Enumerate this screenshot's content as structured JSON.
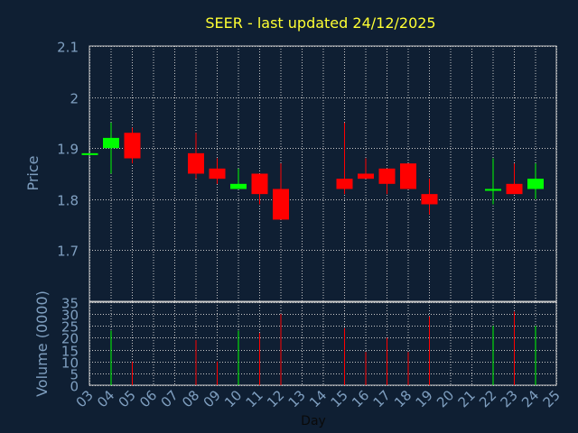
{
  "colors": {
    "background": "#0f1f33",
    "title": "#ffff33",
    "axis_text": "#7f9fc0",
    "grid": "#c8c8c8",
    "up": "#00ff00",
    "down": "#ff0000"
  },
  "chart_data": [
    {
      "type": "candlestick",
      "title": "SEER - last updated 24/12/2025",
      "ylabel": "Price",
      "ylim": [
        1.6,
        2.1
      ],
      "yticks": [
        "1.7",
        "1.8",
        "1.9",
        "2",
        "2.1"
      ],
      "ytick_values": [
        1.7,
        1.8,
        1.9,
        2.0,
        2.1
      ],
      "grid": true,
      "candles": [
        {
          "day": "03",
          "open": 1.89,
          "high": 1.89,
          "low": 1.89,
          "close": 1.89
        },
        {
          "day": "04",
          "open": 1.9,
          "high": 1.95,
          "low": 1.85,
          "close": 1.92
        },
        {
          "day": "05",
          "open": 1.93,
          "high": 1.94,
          "low": 1.87,
          "close": 1.88
        },
        {
          "day": "08",
          "open": 1.89,
          "high": 1.93,
          "low": 1.84,
          "close": 1.85
        },
        {
          "day": "09",
          "open": 1.86,
          "high": 1.88,
          "low": 1.83,
          "close": 1.84
        },
        {
          "day": "10",
          "open": 1.82,
          "high": 1.86,
          "low": 1.82,
          "close": 1.83
        },
        {
          "day": "11",
          "open": 1.85,
          "high": 1.85,
          "low": 1.79,
          "close": 1.81
        },
        {
          "day": "12",
          "open": 1.82,
          "high": 1.87,
          "low": 1.76,
          "close": 1.76
        },
        {
          "day": "15",
          "open": 1.84,
          "high": 1.95,
          "low": 1.81,
          "close": 1.82
        },
        {
          "day": "16",
          "open": 1.85,
          "high": 1.88,
          "low": 1.84,
          "close": 1.84
        },
        {
          "day": "17",
          "open": 1.86,
          "high": 1.86,
          "low": 1.81,
          "close": 1.83
        },
        {
          "day": "18",
          "open": 1.87,
          "high": 1.87,
          "low": 1.82,
          "close": 1.82
        },
        {
          "day": "19",
          "open": 1.81,
          "high": 1.84,
          "low": 1.77,
          "close": 1.79
        },
        {
          "day": "22",
          "open": 1.82,
          "high": 1.88,
          "low": 1.79,
          "close": 1.82
        },
        {
          "day": "23",
          "open": 1.83,
          "high": 1.87,
          "low": 1.81,
          "close": 1.81
        },
        {
          "day": "24",
          "open": 1.82,
          "high": 1.87,
          "low": 1.8,
          "close": 1.84
        }
      ]
    },
    {
      "type": "bar",
      "ylabel": "Volume (0000)",
      "xlabel": "Day",
      "ylim": [
        0,
        35
      ],
      "yticks": [
        "0",
        "5",
        "10",
        "15",
        "20",
        "25",
        "30",
        "35"
      ],
      "ytick_values": [
        0,
        5,
        10,
        15,
        20,
        25,
        30,
        35
      ],
      "categories": [
        "03",
        "04",
        "05",
        "06",
        "07",
        "08",
        "09",
        "10",
        "11",
        "12",
        "13",
        "14",
        "15",
        "16",
        "17",
        "18",
        "19",
        "20",
        "21",
        "22",
        "23",
        "24",
        "25"
      ],
      "volumes": [
        {
          "day": "04",
          "value": 23,
          "direction": "up"
        },
        {
          "day": "05",
          "value": 10,
          "direction": "down"
        },
        {
          "day": "08",
          "value": 19,
          "direction": "down"
        },
        {
          "day": "09",
          "value": 10,
          "direction": "down"
        },
        {
          "day": "10",
          "value": 23,
          "direction": "up"
        },
        {
          "day": "11",
          "value": 22,
          "direction": "down"
        },
        {
          "day": "12",
          "value": 30,
          "direction": "down"
        },
        {
          "day": "15",
          "value": 24,
          "direction": "down"
        },
        {
          "day": "16",
          "value": 14,
          "direction": "down"
        },
        {
          "day": "17",
          "value": 20,
          "direction": "down"
        },
        {
          "day": "18",
          "value": 14,
          "direction": "down"
        },
        {
          "day": "19",
          "value": 29,
          "direction": "down"
        },
        {
          "day": "22",
          "value": 25,
          "direction": "up"
        },
        {
          "day": "23",
          "value": 31,
          "direction": "down"
        },
        {
          "day": "24",
          "value": 25,
          "direction": "up"
        }
      ]
    }
  ]
}
